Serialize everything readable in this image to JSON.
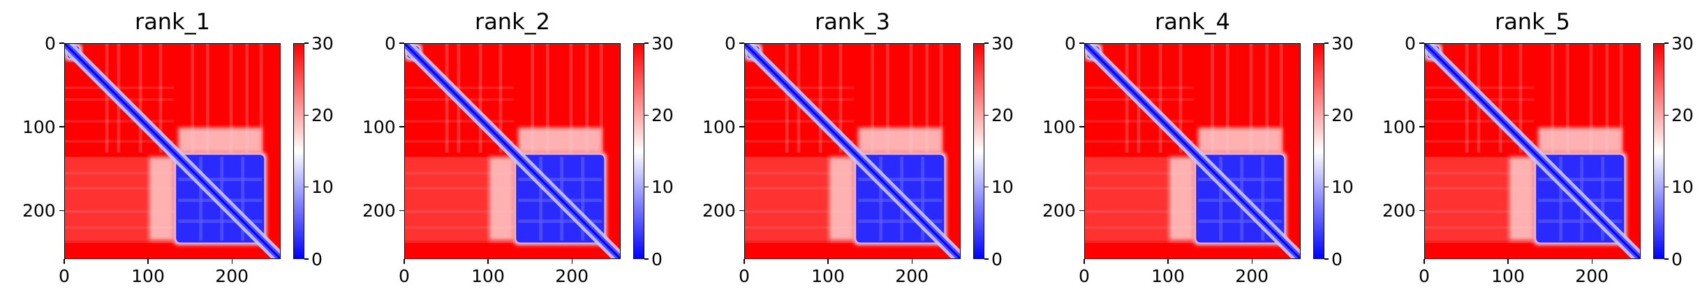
{
  "chart_data": [
    {
      "type": "heatmap",
      "title": "rank_1",
      "x_ticks": [
        0,
        100,
        200
      ],
      "y_ticks": [
        0,
        100,
        200
      ],
      "xlim": [
        0,
        258
      ],
      "ylim": [
        258,
        0
      ],
      "colorbar": {
        "ticks": [
          0,
          10,
          20,
          30
        ],
        "range": [
          0,
          30
        ],
        "colors": [
          "#0000ff",
          "#ffffff",
          "#ff0000"
        ]
      },
      "domains": [
        {
          "start": 0,
          "end": 20
        },
        {
          "start": 130,
          "end": 240
        }
      ],
      "inter_block": {
        "x": [
          100,
          130
        ],
        "y": [
          135,
          235
        ]
      }
    },
    {
      "type": "heatmap",
      "title": "rank_2",
      "x_ticks": [
        0,
        100,
        200
      ],
      "y_ticks": [
        0,
        100,
        200
      ],
      "xlim": [
        0,
        258
      ],
      "ylim": [
        258,
        0
      ],
      "colorbar": {
        "ticks": [
          0,
          10,
          20,
          30
        ],
        "range": [
          0,
          30
        ],
        "colors": [
          "#0000ff",
          "#ffffff",
          "#ff0000"
        ]
      },
      "domains": [
        {
          "start": 0,
          "end": 20
        },
        {
          "start": 130,
          "end": 240
        }
      ],
      "inter_block": {
        "x": [
          100,
          130
        ],
        "y": [
          135,
          235
        ]
      }
    },
    {
      "type": "heatmap",
      "title": "rank_3",
      "x_ticks": [
        0,
        100,
        200
      ],
      "y_ticks": [
        0,
        100,
        200
      ],
      "xlim": [
        0,
        258
      ],
      "ylim": [
        258,
        0
      ],
      "colorbar": {
        "ticks": [
          0,
          10,
          20,
          30
        ],
        "range": [
          0,
          30
        ],
        "colors": [
          "#0000ff",
          "#ffffff",
          "#ff0000"
        ]
      },
      "domains": [
        {
          "start": 0,
          "end": 20
        },
        {
          "start": 130,
          "end": 240
        }
      ],
      "inter_block": {
        "x": [
          100,
          130
        ],
        "y": [
          135,
          235
        ]
      }
    },
    {
      "type": "heatmap",
      "title": "rank_4",
      "x_ticks": [
        0,
        100,
        200
      ],
      "y_ticks": [
        0,
        100,
        200
      ],
      "xlim": [
        0,
        258
      ],
      "ylim": [
        258,
        0
      ],
      "colorbar": {
        "ticks": [
          0,
          10,
          20,
          30
        ],
        "range": [
          0,
          30
        ],
        "colors": [
          "#0000ff",
          "#ffffff",
          "#ff0000"
        ]
      },
      "domains": [
        {
          "start": 0,
          "end": 20
        },
        {
          "start": 130,
          "end": 240
        }
      ],
      "inter_block": {
        "x": [
          100,
          130
        ],
        "y": [
          135,
          235
        ]
      }
    },
    {
      "type": "heatmap",
      "title": "rank_5",
      "x_ticks": [
        0,
        100,
        200
      ],
      "y_ticks": [
        0,
        100,
        200
      ],
      "xlim": [
        0,
        258
      ],
      "ylim": [
        258,
        0
      ],
      "colorbar": {
        "ticks": [
          0,
          10,
          20,
          30
        ],
        "range": [
          0,
          30
        ],
        "colors": [
          "#0000ff",
          "#ffffff",
          "#ff0000"
        ]
      },
      "domains": [
        {
          "start": 0,
          "end": 20
        },
        {
          "start": 130,
          "end": 240
        }
      ],
      "inter_block": {
        "x": [
          100,
          130
        ],
        "y": [
          135,
          235
        ]
      }
    }
  ]
}
